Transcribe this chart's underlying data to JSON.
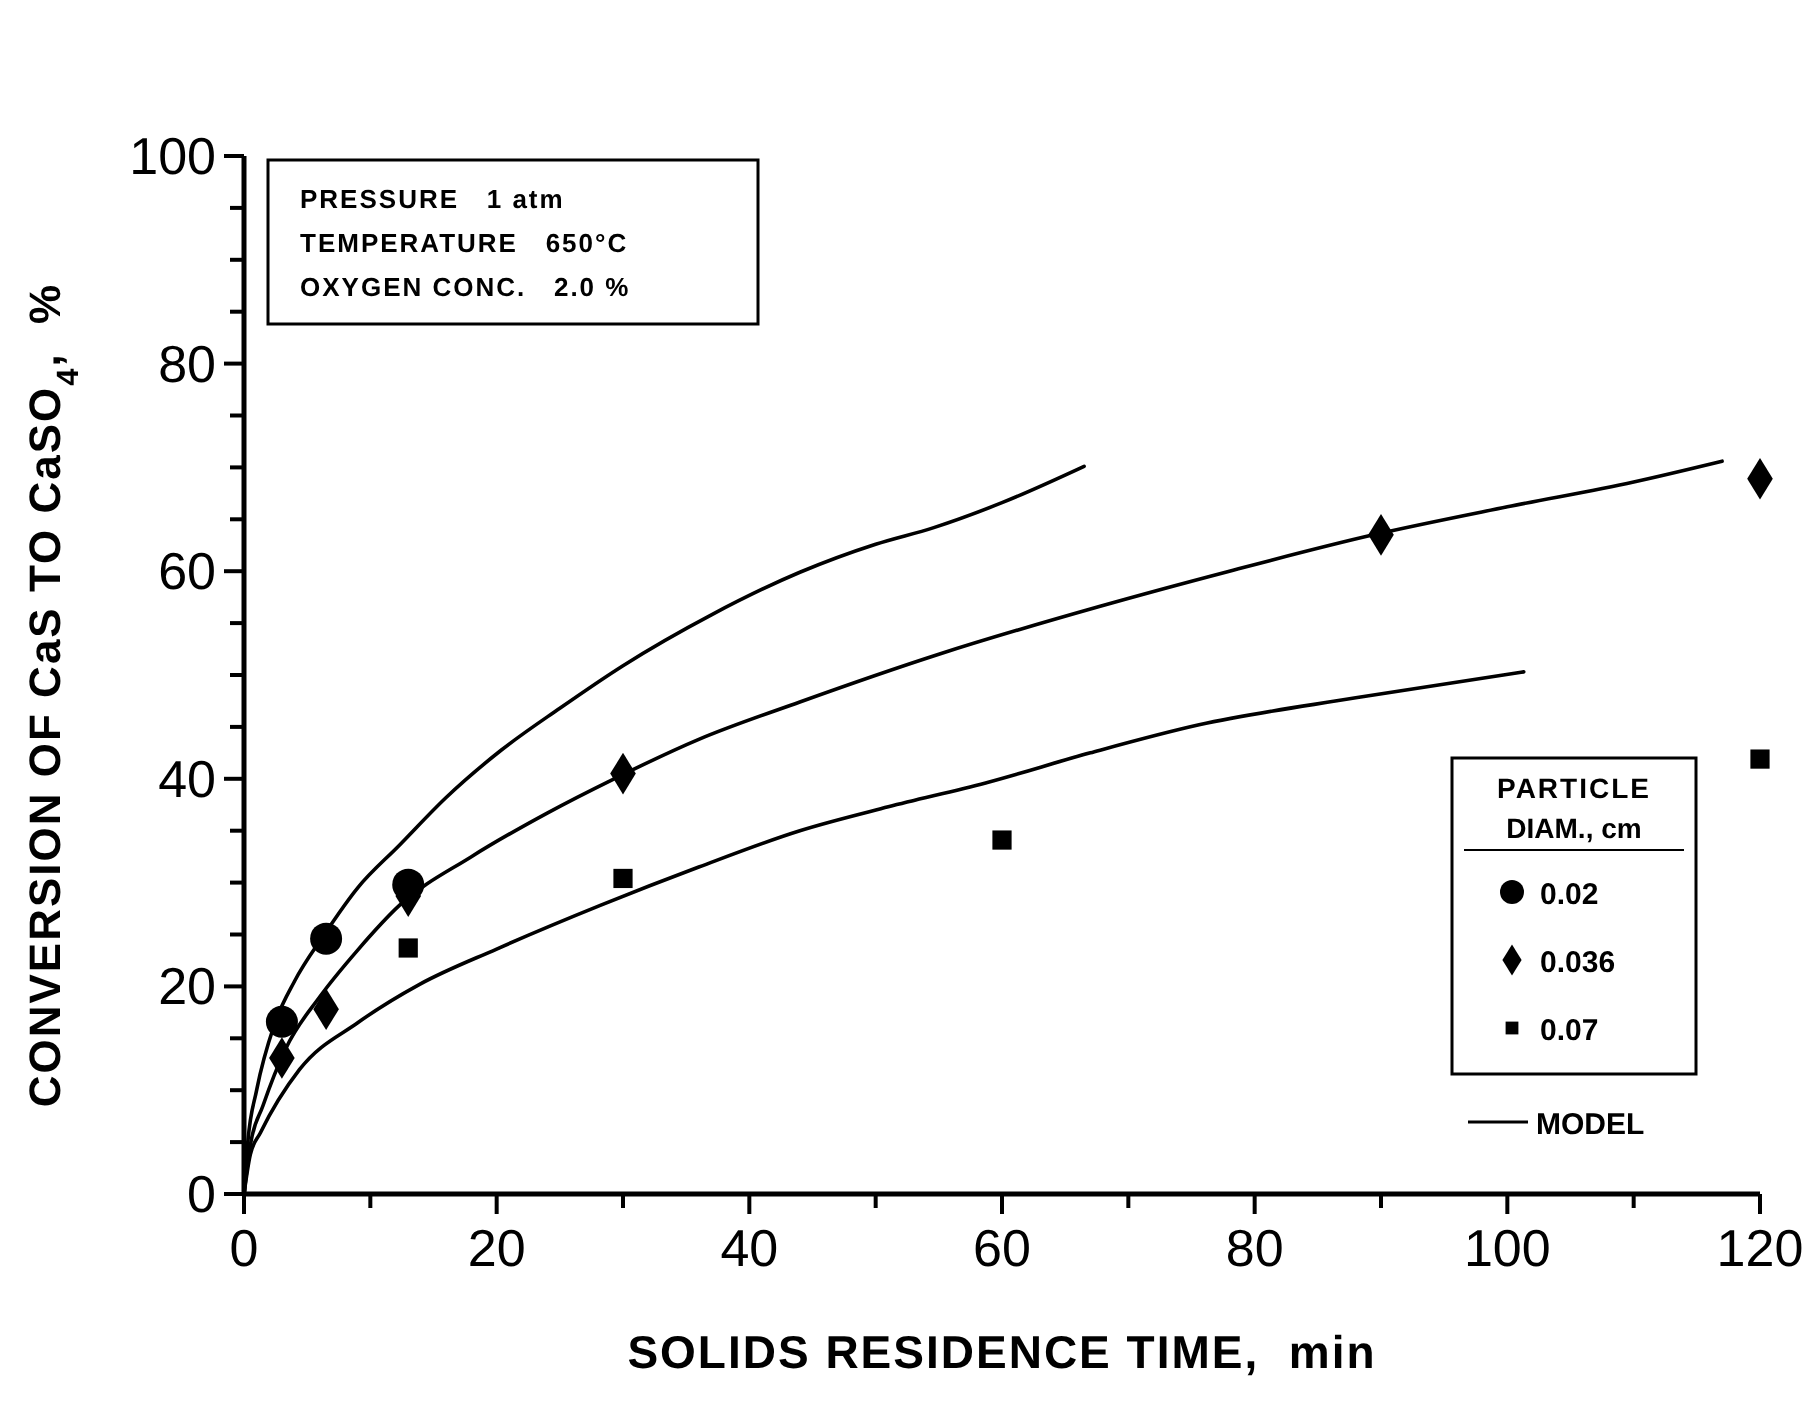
{
  "chart_data": {
    "type": "scatter",
    "xlabel": "SOLIDS RESIDENCE TIME,  min",
    "ylabel": "CONVERSION OF CaS TO CaSO$_{4}$,  %",
    "legend_title": "PARTICLE DIAM., cm",
    "legend": "bottom right",
    "grid": false,
    "annotations": [
      "PRESSURE   1 atm",
      "TEMPERATURE   650°C",
      "OXYGEN CONC.   2.0 %"
    ],
    "xlim": [
      0,
      120
    ],
    "xticks": [
      0,
      {
        "value": 10,
        "label": null
      },
      20,
      {
        "value": 30,
        "label": null
      },
      40,
      {
        "value": 50,
        "label": null
      },
      60,
      {
        "value": 70,
        "label": null
      },
      80,
      {
        "value": 90,
        "label": null
      },
      100,
      {
        "value": 110,
        "label": null
      },
      120
    ],
    "ylim": [
      0,
      100
    ],
    "yticks": [
      0,
      {
        "value": 5,
        "label": null
      },
      {
        "value": 10,
        "label": null
      },
      {
        "value": 15,
        "label": null
      },
      20,
      {
        "value": 25,
        "label": null
      },
      {
        "value": 30,
        "label": null
      },
      {
        "value": 35,
        "label": null
      },
      40,
      {
        "value": 45,
        "label": null
      },
      {
        "value": 50,
        "label": null
      },
      {
        "value": 55,
        "label": null
      },
      60,
      {
        "value": 65,
        "label": null
      },
      {
        "value": 70,
        "label": null
      },
      {
        "value": 75,
        "label": null
      },
      80,
      {
        "value": 85,
        "label": null
      },
      {
        "value": 90,
        "label": null
      },
      {
        "value": 95,
        "label": null
      },
      100
    ],
    "series": [
      {
        "name": "0.02",
        "marker": "circle",
        "color": "#000000",
        "x": [
          3,
          6.5,
          13
        ],
        "values": [
          16.6,
          24.6,
          29.8
        ]
      },
      {
        "name": "0.036",
        "marker": "diamond",
        "color": "#000000",
        "x": [
          3,
          6.5,
          13,
          30,
          90,
          120
        ],
        "values": [
          13.1,
          17.8,
          28.7,
          40.5,
          63.5,
          68.9
        ]
      },
      {
        "name": "0.07",
        "marker": "square",
        "color": "#000000",
        "x": [
          13,
          30,
          60,
          120
        ],
        "values": [
          23.7,
          30.4,
          34.1,
          41.9
        ]
      },
      {
        "name": "MODEL",
        "type": "line",
        "marker": "none",
        "line_style": "solid",
        "color": "#000000",
        "x": [
          0,
          0.3,
          1,
          2.4,
          4,
          6.3,
          9,
          12.3,
          16,
          20.3,
          25,
          30,
          37,
          44,
          50,
          54.6,
          60,
          66.5
        ],
        "values": [
          0,
          5,
          10,
          16.3,
          20.5,
          24.9,
          29.5,
          33.6,
          38.2,
          42.7,
          46.8,
          50.9,
          55.8,
          59.9,
          62.6,
          64.2,
          66.6,
          70.1
        ]
      },
      {
        "type": "line",
        "marker": "none",
        "line_style": "solid",
        "color": "#000000",
        "x": [
          0,
          0.5,
          1.5,
          3.3,
          6,
          9,
          12.3,
          18,
          24,
          29.3,
          36,
          44,
          55,
          67.7,
          78,
          89.4,
          100,
          110,
          117
        ],
        "values": [
          0,
          4.7,
          8.5,
          14,
          19,
          23.5,
          27.8,
          32.5,
          36.7,
          40,
          43.8,
          47.4,
          52,
          56.6,
          60,
          63.5,
          66.2,
          68.6,
          70.6
        ]
      },
      {
        "type": "line",
        "marker": "none",
        "line_style": "solid",
        "color": "#000000",
        "x": [
          0,
          0.5,
          1.3,
          4.4,
          9,
          13.9,
          20,
          28.2,
          36,
          44,
          51,
          58.7,
          67,
          75.6,
          88,
          101.3
        ],
        "values": [
          0,
          3.8,
          5.9,
          12,
          16.5,
          20.2,
          23.6,
          27.8,
          31.5,
          35,
          37.3,
          39.6,
          42.5,
          45.2,
          47.8,
          50.3
        ]
      }
    ]
  }
}
